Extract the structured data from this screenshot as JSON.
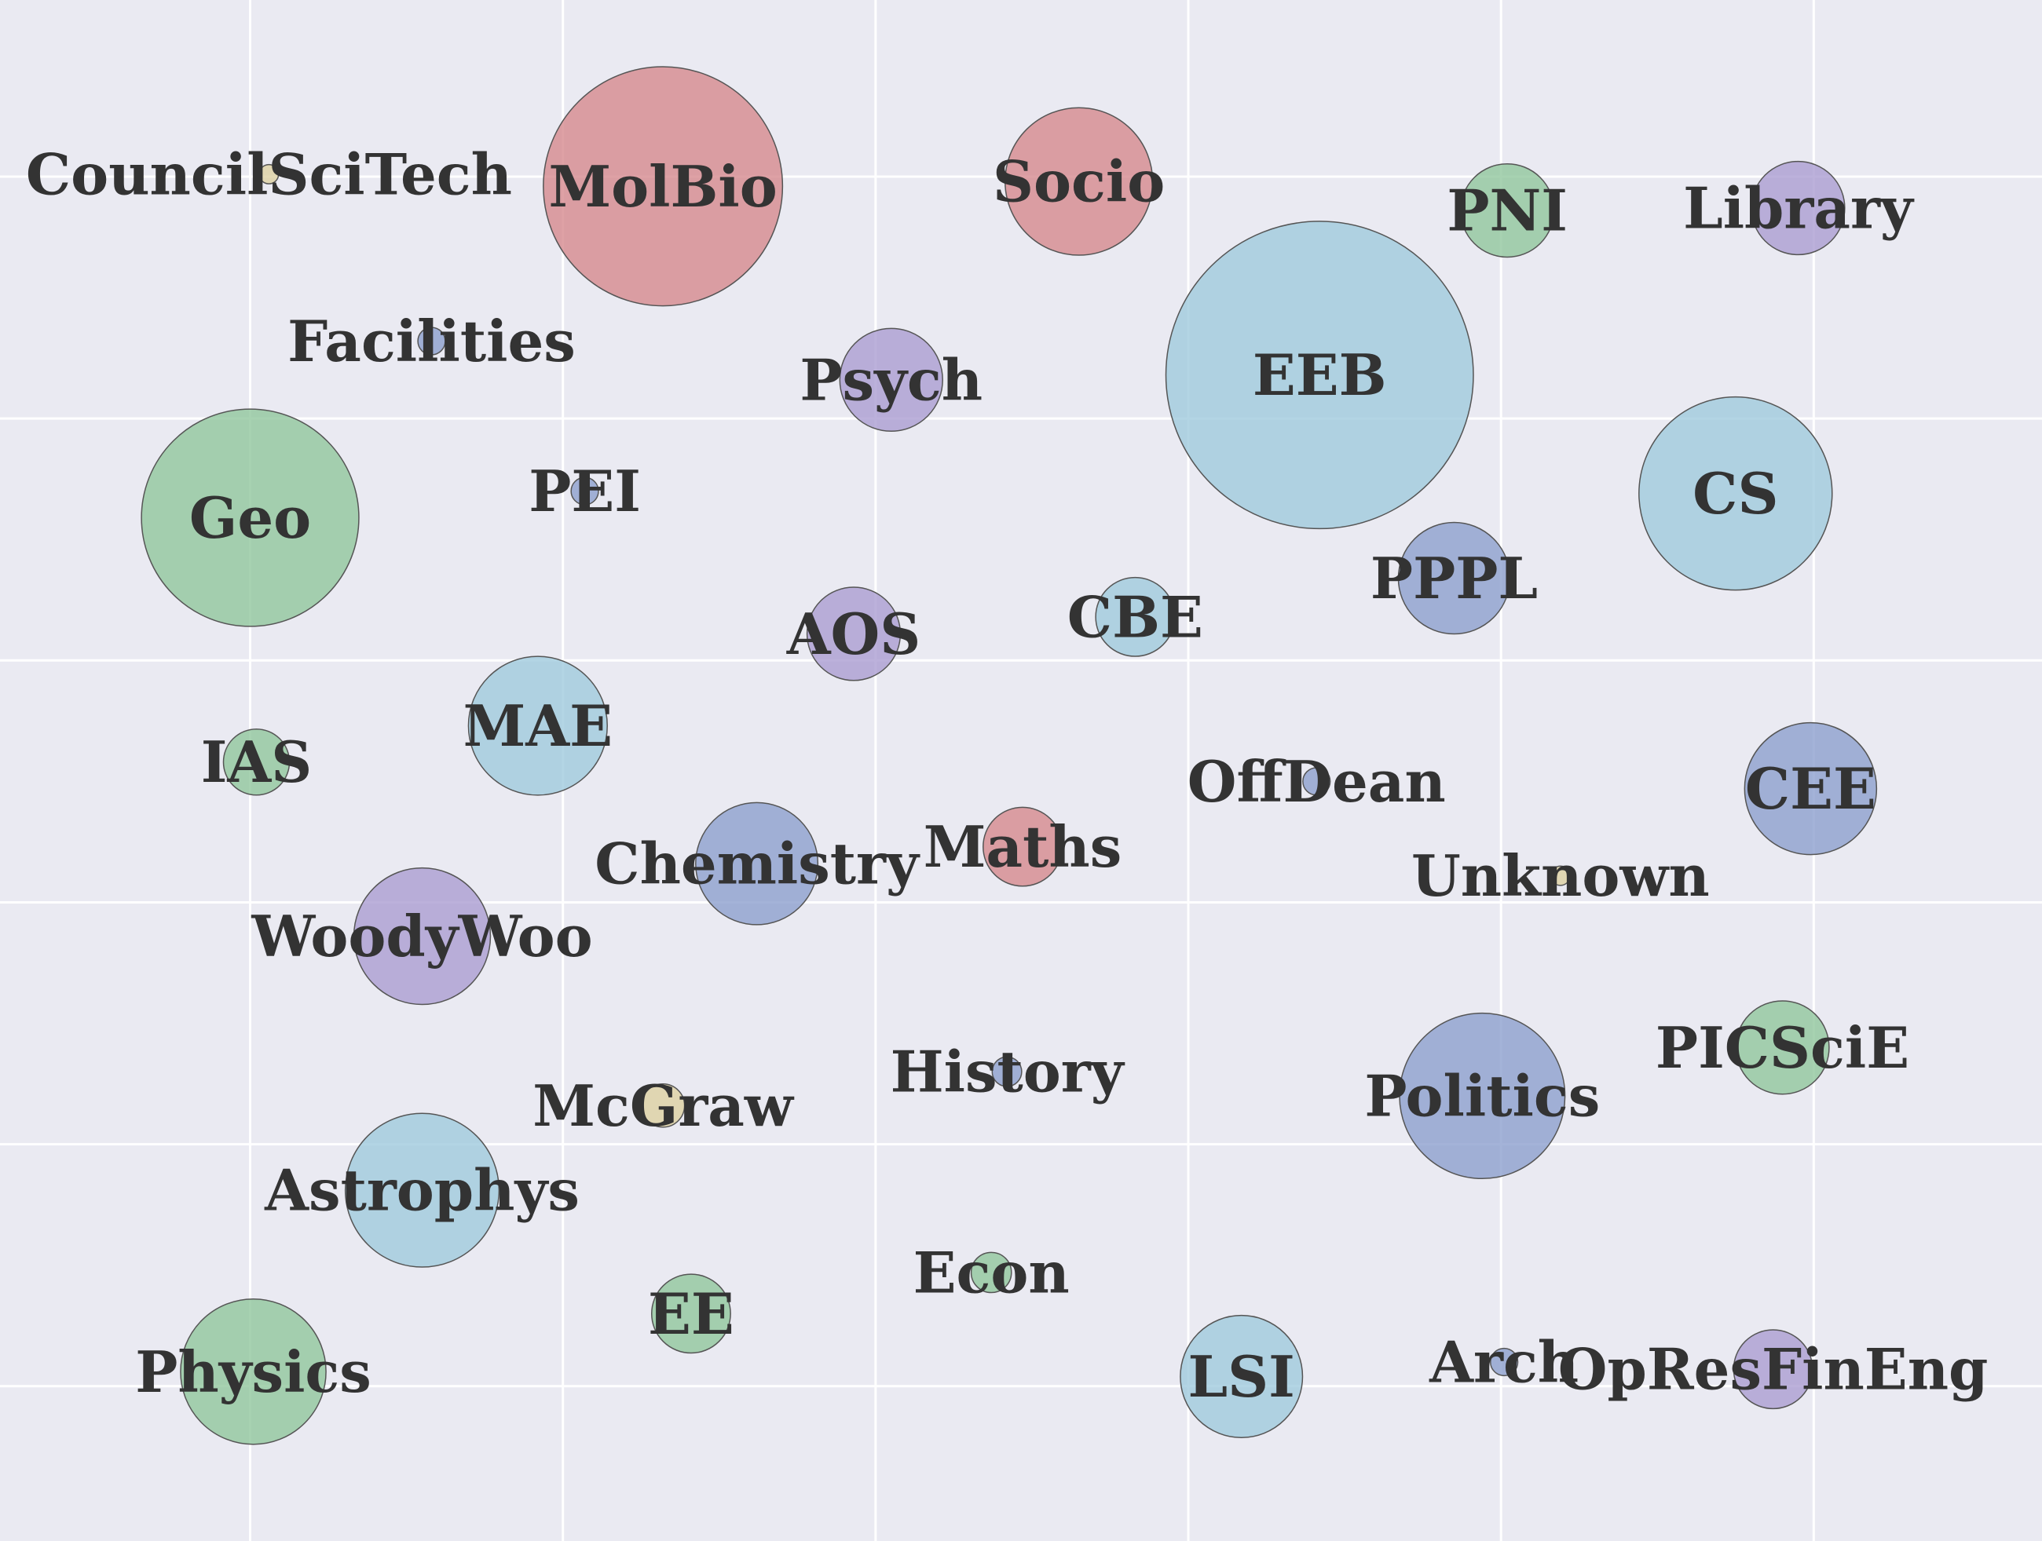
{
  "chart_data": {
    "type": "scatter",
    "title": "",
    "xlabel": "",
    "ylabel": "",
    "xlim": [
      0,
      6.53
    ],
    "ylim": [
      0,
      6.37
    ],
    "xticks": [
      0.8,
      1.8,
      2.8,
      3.8,
      4.8,
      5.8
    ],
    "yticks": [
      0.64,
      1.64,
      2.64,
      3.64,
      4.64,
      5.64
    ],
    "grid": true,
    "series": [
      {
        "points": [
          {
            "label": "CouncilSciTech",
            "x": 0.86,
            "y": 5.65,
            "size": 0.03
          },
          {
            "label": "MolBio",
            "x": 2.12,
            "y": 5.6,
            "size": 4.6
          },
          {
            "label": "Socio",
            "x": 3.45,
            "y": 5.62,
            "size": 1.75
          },
          {
            "label": "PNI",
            "x": 4.82,
            "y": 5.5,
            "size": 0.7
          },
          {
            "label": "Library",
            "x": 5.75,
            "y": 5.51,
            "size": 0.7
          },
          {
            "label": "Facilities",
            "x": 1.38,
            "y": 4.96,
            "size": 0.06
          },
          {
            "label": "Psych",
            "x": 2.85,
            "y": 4.8,
            "size": 0.85
          },
          {
            "label": "EEB",
            "x": 4.22,
            "y": 4.82,
            "size": 7.6
          },
          {
            "label": "Geo",
            "x": 0.8,
            "y": 4.23,
            "size": 3.8
          },
          {
            "label": "PEI",
            "x": 1.87,
            "y": 4.34,
            "size": 0.06
          },
          {
            "label": "CS",
            "x": 5.55,
            "y": 4.33,
            "size": 3.0
          },
          {
            "label": "PPPL",
            "x": 4.65,
            "y": 3.98,
            "size": 1.0
          },
          {
            "label": "CBE",
            "x": 3.63,
            "y": 3.82,
            "size": 0.5
          },
          {
            "label": "AOS",
            "x": 2.73,
            "y": 3.75,
            "size": 0.7
          },
          {
            "label": "MAE",
            "x": 1.72,
            "y": 3.37,
            "size": 1.55
          },
          {
            "label": "IAS",
            "x": 0.82,
            "y": 3.22,
            "size": 0.35
          },
          {
            "label": "OffDean",
            "x": 4.21,
            "y": 3.14,
            "size": 0.06
          },
          {
            "label": "CEE",
            "x": 5.79,
            "y": 3.11,
            "size": 1.4
          },
          {
            "label": "Maths",
            "x": 3.27,
            "y": 2.87,
            "size": 0.5
          },
          {
            "label": "Unknown",
            "x": 4.99,
            "y": 2.75,
            "size": 0.03
          },
          {
            "label": "Chemistry",
            "x": 2.42,
            "y": 2.8,
            "size": 1.2
          },
          {
            "label": "WoodyWoo",
            "x": 1.35,
            "y": 2.5,
            "size": 1.5
          },
          {
            "label": "PICSciE",
            "x": 5.7,
            "y": 2.04,
            "size": 0.7
          },
          {
            "label": "History",
            "x": 3.22,
            "y": 1.94,
            "size": 0.07
          },
          {
            "label": "Politics",
            "x": 4.74,
            "y": 1.84,
            "size": 2.2
          },
          {
            "label": "McGraw",
            "x": 2.12,
            "y": 1.8,
            "size": 0.15
          },
          {
            "label": "Astrophys",
            "x": 1.35,
            "y": 1.45,
            "size": 1.9
          },
          {
            "label": "Econ",
            "x": 3.17,
            "y": 1.11,
            "size": 0.13
          },
          {
            "label": "EE",
            "x": 2.21,
            "y": 0.94,
            "size": 0.5
          },
          {
            "label": "Physics",
            "x": 0.81,
            "y": 0.7,
            "size": 1.7
          },
          {
            "label": "LSI",
            "x": 3.97,
            "y": 0.68,
            "size": 1.2
          },
          {
            "label": "Arch",
            "x": 4.81,
            "y": 0.74,
            "size": 0.06
          },
          {
            "label": "OpResFinEng",
            "x": 5.67,
            "y": 0.71,
            "size": 0.5
          }
        ]
      }
    ],
    "colors": {
      "background": "#eaeaf2",
      "grid": "#ffffff",
      "label": "#333333",
      "bubble_edge": "#555555",
      "palette": {
        "red": "#d5878c",
        "green": "#8ec59b",
        "purple": "#a99bd1",
        "blue": "#8b9dcd",
        "light-blue": "#9dc9dd",
        "khaki": "#dccfa0"
      }
    },
    "point_colors": [
      "khaki",
      "red",
      "red",
      "green",
      "purple",
      "blue",
      "purple",
      "light-blue",
      "green",
      "blue",
      "light-blue",
      "blue",
      "light-blue",
      "purple",
      "light-blue",
      "green",
      "blue",
      "blue",
      "red",
      "khaki",
      "blue",
      "purple",
      "green",
      "blue",
      "blue",
      "khaki",
      "light-blue",
      "green",
      "green",
      "green",
      "light-blue",
      "blue",
      "purple"
    ]
  }
}
